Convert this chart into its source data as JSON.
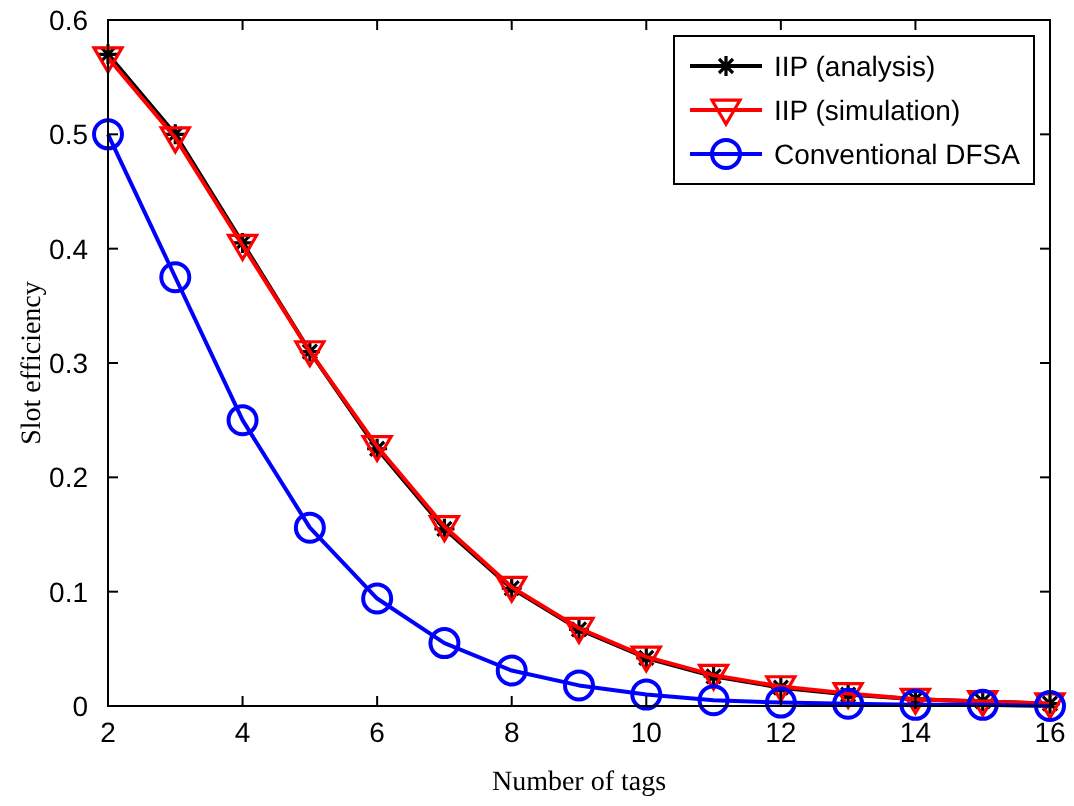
{
  "chart_data": {
    "type": "line",
    "xlabel": "Number of tags",
    "ylabel": "Slot efficiency",
    "x": [
      2,
      3,
      4,
      5,
      6,
      7,
      8,
      9,
      10,
      11,
      12,
      13,
      14,
      15,
      16
    ],
    "series": [
      {
        "name": "IIP (analysis)",
        "color": "#000000",
        "marker": "cross",
        "values": [
          0.57,
          0.5,
          0.405,
          0.31,
          0.225,
          0.155,
          0.103,
          0.067,
          0.042,
          0.026,
          0.016,
          0.01,
          0.006,
          0.004,
          0.002
        ]
      },
      {
        "name": "IIP (simulation)",
        "color": "#ff0000",
        "marker": "triangle",
        "values": [
          0.567,
          0.497,
          0.403,
          0.31,
          0.227,
          0.157,
          0.104,
          0.068,
          0.043,
          0.027,
          0.017,
          0.011,
          0.006,
          0.004,
          0.002
        ]
      },
      {
        "name": "Conventional DFSA",
        "color": "#0000ff",
        "marker": "circle",
        "values": [
          0.5,
          0.375,
          0.25,
          0.156,
          0.094,
          0.055,
          0.031,
          0.018,
          0.01,
          0.005,
          0.003,
          0.002,
          0.001,
          0.001,
          0
        ]
      }
    ],
    "xlim": [
      2,
      16
    ],
    "xticks": [
      2,
      4,
      6,
      8,
      10,
      12,
      14,
      16
    ],
    "ylim": [
      0,
      0.6
    ],
    "yticks": [
      0,
      0.1,
      0.2,
      0.3,
      0.4,
      0.5,
      0.6
    ],
    "grid": false,
    "legend": "top right",
    "line_style": "solid"
  }
}
